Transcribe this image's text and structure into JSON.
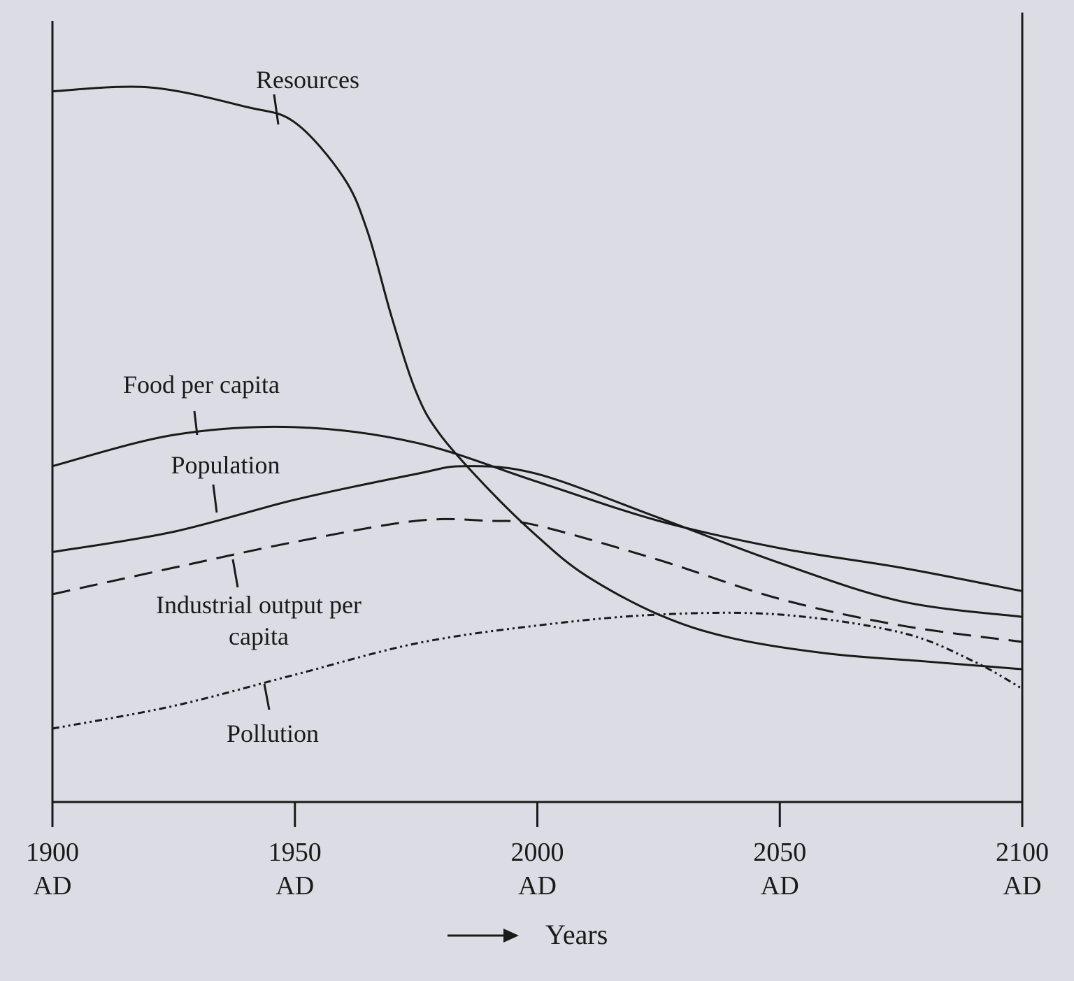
{
  "chart_data": {
    "type": "line",
    "x_label": "Years",
    "xlim": [
      1900,
      2100
    ],
    "ylim": [
      0,
      100
    ],
    "xticks": [
      {
        "value": 1900,
        "label": "1900 AD"
      },
      {
        "value": 1950,
        "label": "1950 AD"
      },
      {
        "value": 2000,
        "label": "2000 AD"
      },
      {
        "value": 2050,
        "label": "2050 AD"
      },
      {
        "value": 2100,
        "label": "2100 AD"
      }
    ],
    "series": [
      {
        "name": "Resources",
        "color": "#1a1a1a",
        "line_style": "solid",
        "x": [
          1900,
          1920,
          1940,
          1950,
          1960,
          1965,
          1970,
          1975,
          1980,
          1990,
          2000,
          2010,
          2025,
          2040,
          2060,
          2080,
          2100
        ],
        "values": [
          91,
          91.5,
          89,
          87,
          80,
          73,
          62,
          52.5,
          47,
          40,
          34,
          29,
          24,
          21,
          19,
          18,
          17
        ]
      },
      {
        "name": "Food per capita",
        "color": "#1a1a1a",
        "line_style": "solid",
        "x": [
          1900,
          1925,
          1950,
          1975,
          2000,
          2025,
          2050,
          2075,
          2100
        ],
        "values": [
          43,
          47,
          48,
          46,
          41,
          36,
          32.5,
          30,
          27
        ]
      },
      {
        "name": "Population",
        "color": "#1a1a1a",
        "line_style": "solid",
        "x": [
          1900,
          1925,
          1950,
          1975,
          1985,
          2000,
          2025,
          2050,
          2075,
          2100
        ],
        "values": [
          32,
          34.6,
          38.7,
          42,
          43,
          42,
          36.4,
          30.6,
          25.7,
          23.7
        ]
      },
      {
        "name": "Industrial output per capita",
        "color": "#1a1a1a",
        "line_style": "dashed",
        "x": [
          1900,
          1925,
          1950,
          1975,
          1990,
          2000,
          2025,
          2050,
          2075,
          2100
        ],
        "values": [
          26.6,
          30,
          33.3,
          36,
          36,
          35.4,
          31,
          26,
          22.6,
          20.5
        ]
      },
      {
        "name": "Pollution",
        "color": "#1a1a1a",
        "line_style": "dash-dot",
        "x": [
          1900,
          1925,
          1950,
          1975,
          2000,
          2025,
          2050,
          2075,
          2090,
          2100
        ],
        "values": [
          9.4,
          12.3,
          16.3,
          20.3,
          22.6,
          24,
          24,
          21.7,
          18,
          14.5
        ]
      }
    ]
  }
}
